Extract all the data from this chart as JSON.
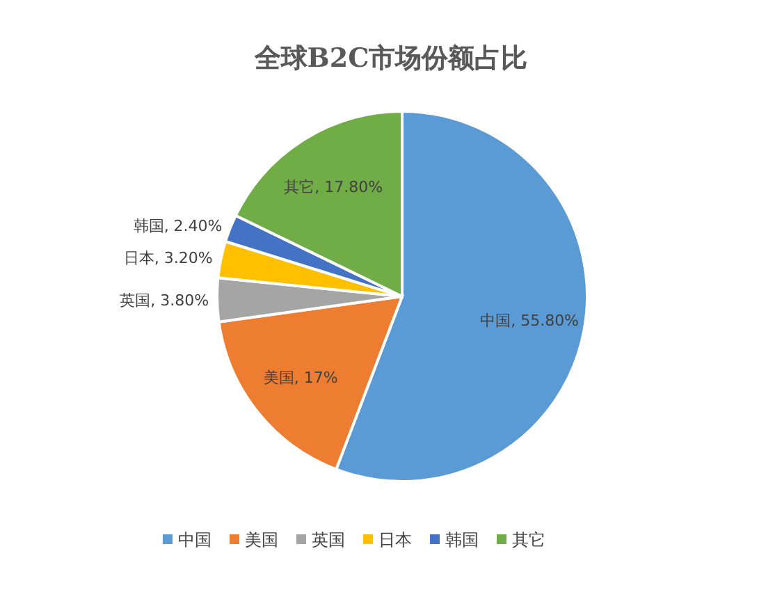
{
  "chart_data": {
    "type": "pie",
    "title": "全球B2C市场份额占比",
    "categories": [
      "中国",
      "美国",
      "英国",
      "日本",
      "韩国",
      "其它"
    ],
    "values": [
      55.8,
      17,
      3.8,
      3.2,
      2.4,
      17.8
    ],
    "value_labels": [
      "中国, 55.80%",
      "美国, 17%",
      "英国, 3.80%",
      "日本, 3.20%",
      "韩国, 2.40%",
      "其它, 17.80%"
    ],
    "colors": [
      "#5b9bd5",
      "#ed7d31",
      "#a5a5a5",
      "#ffc000",
      "#4472c4",
      "#70ad47"
    ],
    "legend": "bottom"
  }
}
